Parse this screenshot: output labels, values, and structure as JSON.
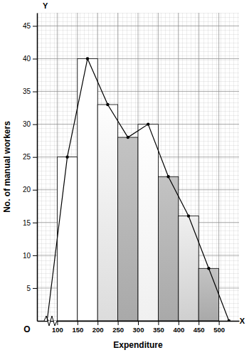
{
  "chart_data": {
    "type": "histogram",
    "x_label": "Expenditure",
    "y_label": "No. of manual workers",
    "origin_label": "O",
    "x_axis_letter": "X",
    "y_axis_letter": "Y",
    "bins": [
      100,
      150,
      200,
      250,
      300,
      350,
      400,
      450,
      500
    ],
    "values": [
      25,
      40,
      33,
      28,
      30,
      22,
      16,
      8
    ],
    "colors": [
      "#ffffff",
      "#ffffff",
      "#dcdcdc",
      "#a9a9a9",
      "#f0f0f0",
      "#a9a9a9",
      "#cfcfcf",
      "#a9a9a9"
    ],
    "series": [
      {
        "type": "line",
        "color": "#000000",
        "marker": "circle",
        "line_style": "solid",
        "x": [
          75,
          125,
          175,
          225,
          275,
          325,
          375,
          425,
          475,
          525
        ],
        "values": [
          0,
          25,
          40,
          33,
          28,
          30,
          22,
          16,
          8,
          0
        ]
      }
    ],
    "xlim": [
      50,
      550
    ],
    "ylim": [
      0,
      47
    ],
    "xticks": [
      100,
      150,
      200,
      250,
      300,
      350,
      400,
      450,
      500
    ],
    "yticks": [
      5,
      10,
      15,
      20,
      25,
      30,
      35,
      40,
      45
    ],
    "grid": true
  }
}
